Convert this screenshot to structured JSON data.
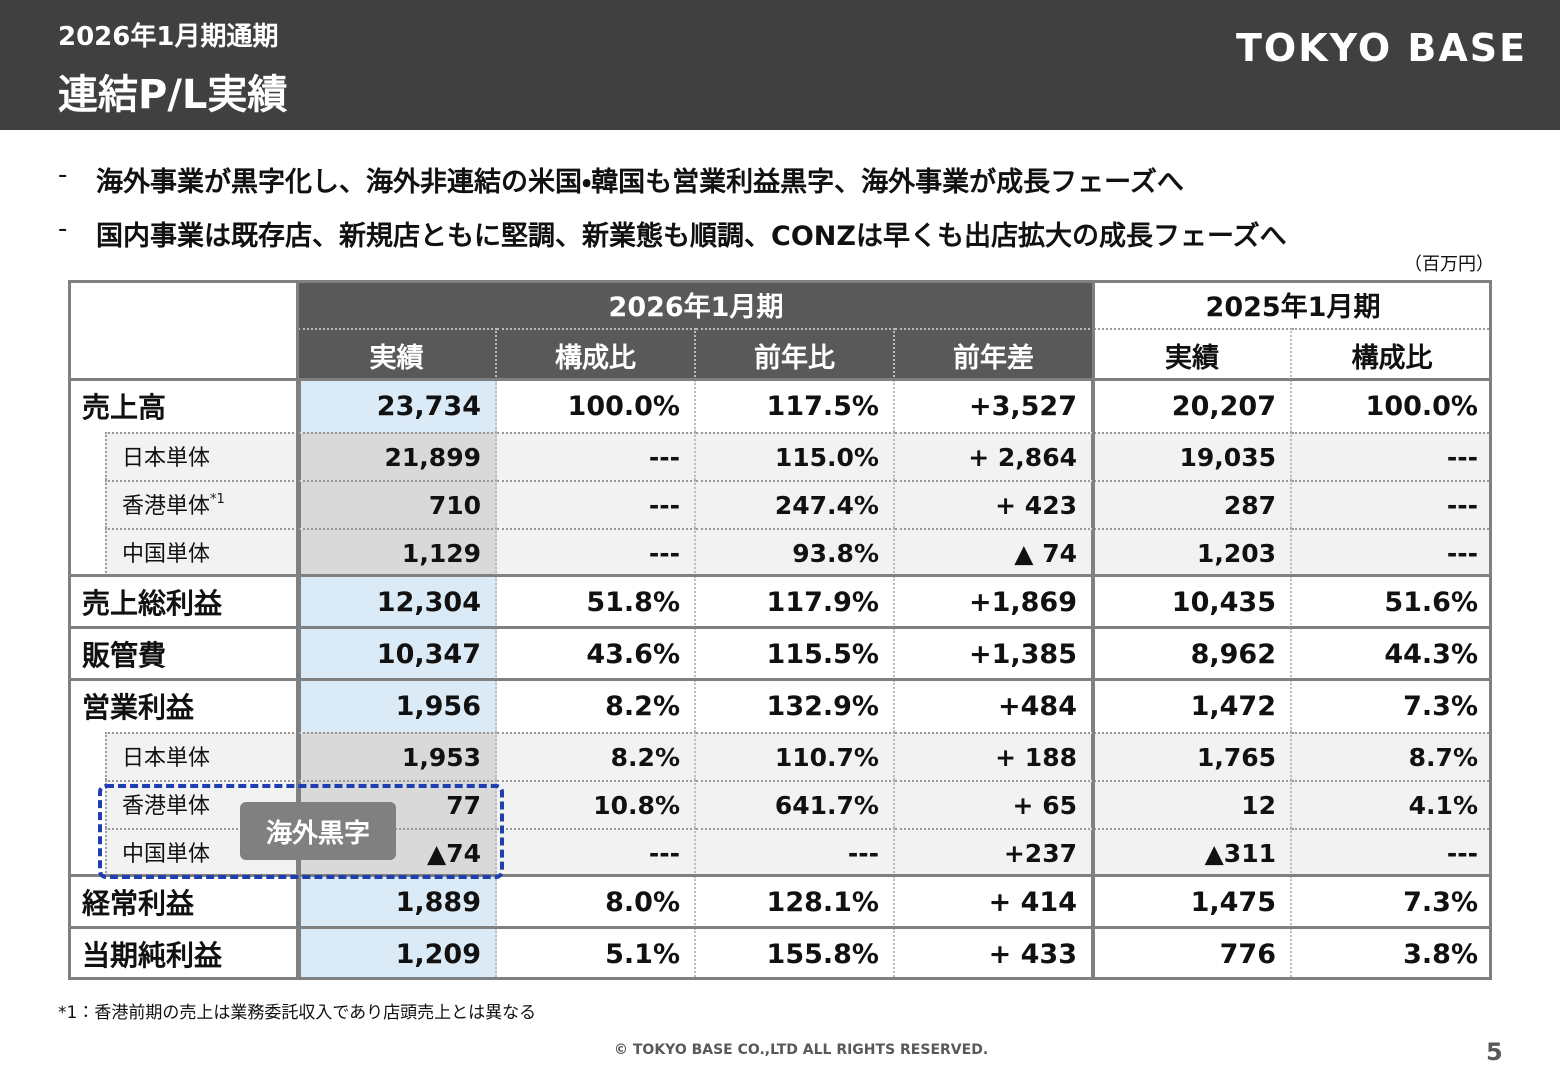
{
  "header": {
    "period": "2026年1月期通期",
    "title": "連結P/L実績",
    "brand": "TOKYO BASE"
  },
  "bullets": [
    "海外事業が黒字化し、海外非連結の米国・韓国も営業利益黒字、海外事業が成長フェーズへ",
    "国内事業は既存店、新規店ともに堅調、新業態も順調、CONZは早くも出店拡大の成長フェーズへ"
  ],
  "bullet_marker": "-",
  "unit": "（百万円）",
  "table": {
    "group_headers": [
      "2026年1月期",
      "2025年1月期"
    ],
    "columns": [
      "実績",
      "構成比",
      "前年比",
      "前年差",
      "実績",
      "構成比"
    ],
    "rows": [
      {
        "label": "売上高",
        "cells": [
          "23,734",
          "100.0%",
          "117.5%",
          "+3,527",
          "20,207",
          "100.0%"
        ],
        "subrows": [
          {
            "label": "日本単体",
            "cells": [
              "21,899",
              "---",
              "115.0%",
              "+ 2,864",
              "19,035",
              "---"
            ]
          },
          {
            "label": "香港単体",
            "note": "*1",
            "cells": [
              "710",
              "---",
              "247.4%",
              "+ 423",
              "287",
              "---"
            ]
          },
          {
            "label": "中国単体",
            "cells": [
              "1,129",
              "---",
              "93.8%",
              "▲ 74",
              "1,203",
              "---"
            ]
          }
        ]
      },
      {
        "label": "売上総利益",
        "cells": [
          "12,304",
          "51.8%",
          "117.9%",
          "+1,869",
          "10,435",
          "51.6%"
        ]
      },
      {
        "label": "販管費",
        "cells": [
          "10,347",
          "43.6%",
          "115.5%",
          "+1,385",
          "8,962",
          "44.3%"
        ]
      },
      {
        "label": "営業利益",
        "cells": [
          "1,956",
          "8.2%",
          "132.9%",
          "+484",
          "1,472",
          "7.3%"
        ],
        "subrows": [
          {
            "label": "日本単体",
            "cells": [
              "1,953",
              "8.2%",
              "110.7%",
              "+ 188",
              "1,765",
              "8.7%"
            ]
          },
          {
            "label": "香港単体",
            "cells": [
              "77",
              "10.8%",
              "641.7%",
              "+ 65",
              "12",
              "4.1%"
            ]
          },
          {
            "label": "中国単体",
            "cells": [
              "▲74",
              "---",
              "---",
              "+237",
              "▲311",
              "---"
            ]
          }
        ]
      },
      {
        "label": "経常利益",
        "cells": [
          "1,889",
          "8.0%",
          "128.1%",
          "+ 414",
          "1,475",
          "7.3%"
        ]
      },
      {
        "label": "当期純利益",
        "cells": [
          "1,209",
          "5.1%",
          "155.8%",
          "+ 433",
          "776",
          "3.8%"
        ]
      }
    ]
  },
  "annotation": "海外黒字",
  "footnote": "*1：香港前期の売上は業務委託収入であり店頭売上とは異なる",
  "copyright": "© TOKYO BASE CO.,LTD  ALL RIGHTS RESERVED.",
  "page_number": "5"
}
